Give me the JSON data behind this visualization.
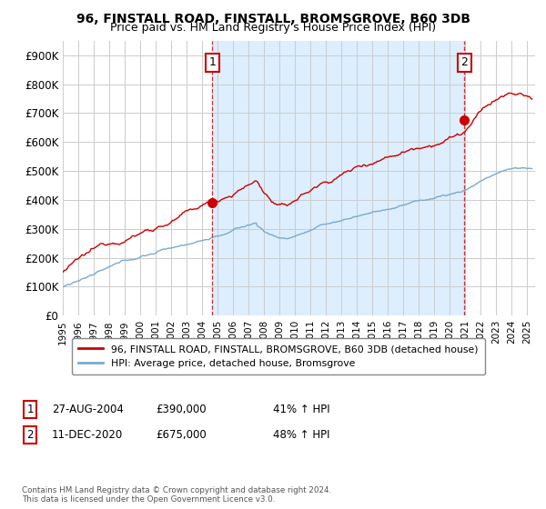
{
  "title": "96, FINSTALL ROAD, FINSTALL, BROMSGROVE, B60 3DB",
  "subtitle": "Price paid vs. HM Land Registry's House Price Index (HPI)",
  "ylim": [
    0,
    950000
  ],
  "yticks": [
    0,
    100000,
    200000,
    300000,
    400000,
    500000,
    600000,
    700000,
    800000,
    900000
  ],
  "ytick_labels": [
    "£0",
    "£100K",
    "£200K",
    "£300K",
    "£400K",
    "£500K",
    "£600K",
    "£700K",
    "£800K",
    "£900K"
  ],
  "xlim_start": 1995.0,
  "xlim_end": 2025.5,
  "sale1_date": 2004.65,
  "sale1_price": 390000,
  "sale1_label": "1",
  "sale2_date": 2020.94,
  "sale2_price": 675000,
  "sale2_label": "2",
  "red_line_color": "#cc0000",
  "blue_line_color": "#7aaad0",
  "blue_fill_color": "#ddeeff",
  "grid_color": "#cccccc",
  "background_color": "#ffffff",
  "legend_label_red": "96, FINSTALL ROAD, FINSTALL, BROMSGROVE, B60 3DB (detached house)",
  "legend_label_blue": "HPI: Average price, detached house, Bromsgrove",
  "ann1_num": "1",
  "ann1_date": "27-AUG-2004",
  "ann1_price": "£390,000",
  "ann1_hpi": "41% ↑ HPI",
  "ann2_num": "2",
  "ann2_date": "11-DEC-2020",
  "ann2_price": "£675,000",
  "ann2_hpi": "48% ↑ HPI",
  "footer_text": "Contains HM Land Registry data © Crown copyright and database right 2024.\nThis data is licensed under the Open Government Licence v3.0.",
  "title_fontsize": 10,
  "subtitle_fontsize": 9
}
